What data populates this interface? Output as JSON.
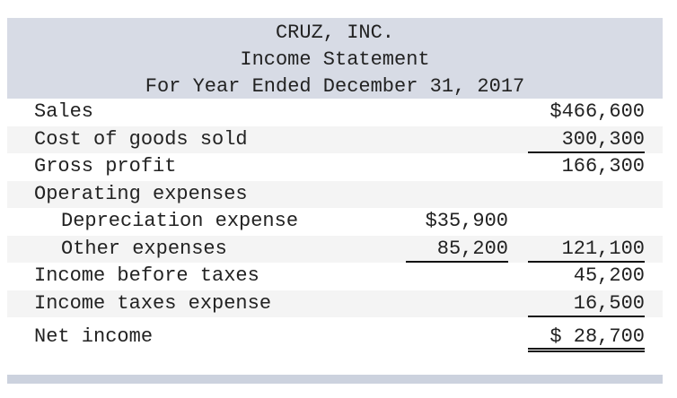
{
  "header": {
    "company": "CRUZ, INC.",
    "statement": "Income Statement",
    "period": "For Year Ended December 31, 2017"
  },
  "rows": [
    {
      "label": "Sales",
      "col1": "",
      "col2": "$466,600"
    },
    {
      "label": "Cost of goods sold",
      "col1": "",
      "col2": "300,300"
    },
    {
      "label": "Gross profit",
      "col1": "",
      "col2": "166,300"
    },
    {
      "label": "Operating expenses",
      "col1": "",
      "col2": ""
    },
    {
      "label": "Depreciation expense",
      "col1": "$35,900",
      "col2": ""
    },
    {
      "label": "Other expenses",
      "col1": "85,200",
      "col2": "121,100"
    },
    {
      "label": "Income before taxes",
      "col1": "",
      "col2": "45,200"
    },
    {
      "label": "Income taxes expense",
      "col1": "",
      "col2": "16,500"
    },
    {
      "label": "Net income",
      "col1": "",
      "col2": "$ 28,700"
    }
  ],
  "colors": {
    "header_bg": "#d7dbe5",
    "alt_row_bg": "#f4f4f4",
    "footer_band": "#ccd2de"
  }
}
